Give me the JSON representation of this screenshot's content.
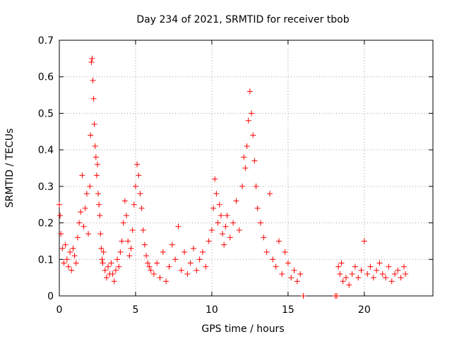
{
  "chart_data": {
    "type": "scatter",
    "title": "Day 234 of 2021, SRMTID for receiver tbob",
    "xlabel": "GPS time / hours",
    "ylabel": "SRMTID / TECUs",
    "xlim": [
      0,
      24.5
    ],
    "ylim": [
      0,
      0.7
    ],
    "xticks": [
      0,
      5,
      10,
      15,
      20
    ],
    "xtick_labels": [
      "0",
      "5",
      "10",
      "15",
      "20"
    ],
    "yticks": [
      0,
      0.1,
      0.2,
      0.3,
      0.4,
      0.5,
      0.6,
      0.7
    ],
    "ytick_labels": [
      "0",
      "0.1",
      "0.2",
      "0.3",
      "0.4",
      "0.5",
      "0.6",
      "0.7"
    ],
    "grid": true,
    "marker": "plus",
    "color": "#ff0000",
    "series": [
      {
        "name": "SRMTID",
        "x": [
          0.0,
          0.05,
          0.1,
          0.2,
          0.3,
          0.4,
          0.5,
          0.6,
          0.7,
          0.8,
          0.9,
          1.0,
          1.1,
          1.2,
          1.3,
          1.4,
          1.5,
          1.6,
          1.7,
          1.8,
          1.9,
          2.0,
          2.05,
          2.1,
          2.15,
          2.2,
          2.25,
          2.3,
          2.35,
          2.4,
          2.45,
          2.5,
          2.55,
          2.6,
          2.65,
          2.7,
          2.75,
          2.8,
          2.85,
          2.9,
          3.0,
          3.1,
          3.2,
          3.3,
          3.4,
          3.5,
          3.6,
          3.7,
          3.8,
          3.9,
          4.0,
          4.1,
          4.2,
          4.3,
          4.4,
          4.5,
          4.6,
          4.7,
          4.8,
          4.9,
          5.0,
          5.1,
          5.2,
          5.3,
          5.4,
          5.5,
          5.6,
          5.7,
          5.8,
          5.9,
          6.0,
          6.2,
          6.4,
          6.6,
          6.8,
          7.0,
          7.2,
          7.4,
          7.6,
          7.8,
          8.0,
          8.2,
          8.4,
          8.6,
          8.8,
          9.0,
          9.2,
          9.4,
          9.6,
          9.8,
          10.0,
          10.1,
          10.2,
          10.3,
          10.4,
          10.5,
          10.6,
          10.7,
          10.8,
          10.9,
          11.0,
          11.2,
          11.4,
          11.6,
          11.8,
          12.0,
          12.1,
          12.2,
          12.3,
          12.4,
          12.5,
          12.6,
          12.7,
          12.8,
          12.9,
          13.0,
          13.2,
          13.4,
          13.6,
          13.8,
          14.0,
          14.2,
          14.4,
          14.6,
          14.8,
          15.0,
          15.2,
          15.4,
          15.6,
          15.8,
          16.0,
          18.1,
          18.2,
          18.3,
          18.4,
          18.5,
          18.6,
          18.8,
          19.0,
          19.2,
          19.4,
          19.6,
          19.8,
          20.0,
          20.2,
          20.4,
          20.6,
          20.8,
          21.0,
          21.2,
          21.4,
          21.6,
          21.8,
          22.0,
          22.2,
          22.4,
          22.6,
          22.7
        ],
        "y": [
          0.25,
          0.22,
          0.17,
          0.13,
          0.09,
          0.14,
          0.1,
          0.08,
          0.12,
          0.07,
          0.13,
          0.11,
          0.09,
          0.16,
          0.2,
          0.23,
          0.33,
          0.19,
          0.24,
          0.28,
          0.17,
          0.3,
          0.44,
          0.64,
          0.65,
          0.59,
          0.54,
          0.47,
          0.41,
          0.38,
          0.33,
          0.36,
          0.28,
          0.25,
          0.22,
          0.17,
          0.13,
          0.1,
          0.09,
          0.12,
          0.07,
          0.05,
          0.08,
          0.06,
          0.09,
          0.06,
          0.04,
          0.07,
          0.1,
          0.08,
          0.12,
          0.15,
          0.2,
          0.26,
          0.22,
          0.15,
          0.11,
          0.13,
          0.18,
          0.25,
          0.3,
          0.36,
          0.33,
          0.28,
          0.24,
          0.18,
          0.14,
          0.11,
          0.09,
          0.08,
          0.07,
          0.06,
          0.09,
          0.05,
          0.12,
          0.04,
          0.08,
          0.14,
          0.1,
          0.19,
          0.07,
          0.12,
          0.06,
          0.09,
          0.13,
          0.07,
          0.1,
          0.12,
          0.08,
          0.15,
          0.18,
          0.24,
          0.32,
          0.28,
          0.2,
          0.25,
          0.22,
          0.17,
          0.14,
          0.19,
          0.22,
          0.16,
          0.2,
          0.26,
          0.18,
          0.3,
          0.38,
          0.35,
          0.41,
          0.48,
          0.56,
          0.5,
          0.44,
          0.37,
          0.3,
          0.24,
          0.2,
          0.16,
          0.12,
          0.28,
          0.1,
          0.08,
          0.15,
          0.06,
          0.12,
          0.09,
          0.05,
          0.07,
          0.04,
          0.06,
          0.0,
          0.0,
          0.0,
          0.08,
          0.06,
          0.09,
          0.04,
          0.05,
          0.03,
          0.06,
          0.08,
          0.05,
          0.07,
          0.15,
          0.06,
          0.08,
          0.05,
          0.07,
          0.09,
          0.06,
          0.05,
          0.08,
          0.04,
          0.06,
          0.07,
          0.05,
          0.08,
          0.06
        ]
      }
    ]
  }
}
